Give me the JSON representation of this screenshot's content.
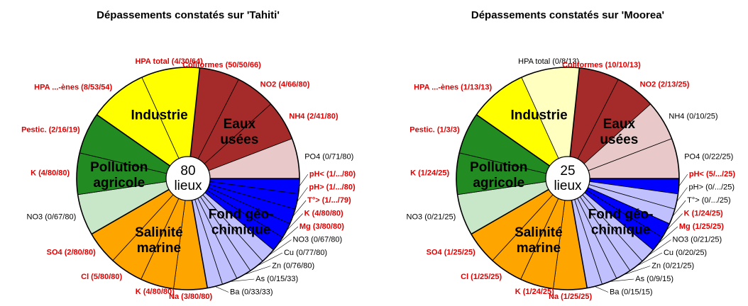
{
  "chart_data": [
    {
      "type": "pie",
      "title": "Dépassements constatés sur 'Tahiti'",
      "center": [
        "80",
        "lieux"
      ],
      "groups": [
        {
          "name": [
            "Fond géo-",
            "chimique"
          ],
          "slices": [
            {
              "label": "pH< (1/.../80)",
              "color": "#0000ff",
              "label_color": "#e00000"
            },
            {
              "label": "pH> (1/.../80)",
              "color": "#0000ff",
              "label_color": "#e00000"
            },
            {
              "label": "T°> (1/.../79)",
              "color": "#0000ff",
              "label_color": "#e00000"
            },
            {
              "label": "K (4/80/80)",
              "color": "#0000ff",
              "label_color": "#e00000"
            },
            {
              "label": "Mg (3/80/80)",
              "color": "#0000ff",
              "label_color": "#e00000"
            },
            {
              "label": "NO3 (0/67/80)",
              "color": "#c0c0ff",
              "label_color": "#000000"
            },
            {
              "label": "Cu (0/77/80)",
              "color": "#c0c0ff",
              "label_color": "#000000"
            },
            {
              "label": "Zn (0/76/80)",
              "color": "#c0c0ff",
              "label_color": "#000000"
            },
            {
              "label": "As (0/15/33)",
              "color": "#c0c0ff",
              "label_color": "#000000"
            },
            {
              "label": "Ba (0/33/33)",
              "color": "#c0c0ff",
              "label_color": "#000000"
            }
          ]
        },
        {
          "name": [
            "Salinité",
            "marine"
          ],
          "slices": [
            {
              "label": "Na (3/80/80)",
              "color": "#ffa500",
              "label_color": "#e00000"
            },
            {
              "label": "K (4/80/80)",
              "color": "#ffa500",
              "label_color": "#e00000"
            },
            {
              "label": "Cl (5/80/80)",
              "color": "#ffa500",
              "label_color": "#e00000"
            },
            {
              "label": "SO4 (2/80/80)",
              "color": "#ffa500",
              "label_color": "#e00000"
            }
          ]
        },
        {
          "name": [
            "Pollution",
            "agricole"
          ],
          "slices": [
            {
              "label": "NO3 (0/67/80)",
              "color": "#c8e6c8",
              "label_color": "#000000"
            },
            {
              "label": "K (4/80/80)",
              "color": "#228b22",
              "label_color": "#e00000"
            },
            {
              "label": "Pestic. (2/16/19)",
              "color": "#228b22",
              "label_color": "#e00000"
            }
          ]
        },
        {
          "name": [
            "Industrie"
          ],
          "slices": [
            {
              "label": "HPA ...-ènes (8/53/54)",
              "color": "#ffff00",
              "label_color": "#e00000"
            },
            {
              "label": "HPA total (4/30/64)",
              "color": "#ffff00",
              "label_color": "#e00000"
            }
          ]
        },
        {
          "name": [
            "Eaux",
            "usées"
          ],
          "slices": [
            {
              "label": "Coliformes (50/50/66)",
              "color": "#a52a2a",
              "label_color": "#e00000"
            },
            {
              "label": "NO2 (4/66/80)",
              "color": "#a52a2a",
              "label_color": "#e00000"
            },
            {
              "label": "NH4 (2/41/80)",
              "color": "#a52a2a",
              "label_color": "#e00000"
            },
            {
              "label": "PO4 (0/71/80)",
              "color": "#e8c8c8",
              "label_color": "#000000"
            }
          ]
        }
      ]
    },
    {
      "type": "pie",
      "title": "Dépassements constatés sur 'Moorea'",
      "center": [
        "25",
        "lieux"
      ],
      "groups": [
        {
          "name": [
            "Fond géo-",
            "chimique"
          ],
          "slices": [
            {
              "label": "pH< (5/.../25)",
              "color": "#0000ff",
              "label_color": "#e00000"
            },
            {
              "label": "pH> (0/.../25)",
              "color": "#c0c0ff",
              "label_color": "#000000"
            },
            {
              "label": "T°> (0/.../25)",
              "color": "#c0c0ff",
              "label_color": "#000000"
            },
            {
              "label": "K (1/24/25)",
              "color": "#0000ff",
              "label_color": "#e00000"
            },
            {
              "label": "Mg (1/25/25)",
              "color": "#0000ff",
              "label_color": "#e00000"
            },
            {
              "label": "NO3 (0/21/25)",
              "color": "#c0c0ff",
              "label_color": "#000000"
            },
            {
              "label": "Cu (0/20/25)",
              "color": "#c0c0ff",
              "label_color": "#000000"
            },
            {
              "label": "Zn (0/21/25)",
              "color": "#c0c0ff",
              "label_color": "#000000"
            },
            {
              "label": "As (0/9/15)",
              "color": "#c0c0ff",
              "label_color": "#000000"
            },
            {
              "label": "Ba (0/15/15)",
              "color": "#c0c0ff",
              "label_color": "#000000"
            }
          ]
        },
        {
          "name": [
            "Salinité",
            "marine"
          ],
          "slices": [
            {
              "label": "Na (1/25/25)",
              "color": "#ffa500",
              "label_color": "#e00000"
            },
            {
              "label": "K (1/24/25)",
              "color": "#ffa500",
              "label_color": "#e00000"
            },
            {
              "label": "Cl (1/25/25)",
              "color": "#ffa500",
              "label_color": "#e00000"
            },
            {
              "label": "SO4 (1/25/25)",
              "color": "#ffa500",
              "label_color": "#e00000"
            }
          ]
        },
        {
          "name": [
            "Pollution",
            "agricole"
          ],
          "slices": [
            {
              "label": "NO3 (0/21/25)",
              "color": "#c8e6c8",
              "label_color": "#000000"
            },
            {
              "label": "K (1/24/25)",
              "color": "#228b22",
              "label_color": "#e00000"
            },
            {
              "label": "Pestic. (1/3/3)",
              "color": "#228b22",
              "label_color": "#e00000"
            }
          ]
        },
        {
          "name": [
            "Industrie"
          ],
          "slices": [
            {
              "label": "HPA ...-ènes (1/13/13)",
              "color": "#ffff00",
              "label_color": "#e00000"
            },
            {
              "label": "HPA total (0/8/13)",
              "color": "#ffffc0",
              "label_color": "#000000"
            }
          ]
        },
        {
          "name": [
            "Eaux",
            "usées"
          ],
          "slices": [
            {
              "label": "Coliformes (10/10/13)",
              "color": "#a52a2a",
              "label_color": "#e00000"
            },
            {
              "label": "NO2 (2/13/25)",
              "color": "#a52a2a",
              "label_color": "#e00000"
            },
            {
              "label": "NH4 (0/10/25)",
              "color": "#e8c8c8",
              "label_color": "#000000"
            },
            {
              "label": "PO4 (0/22/25)",
              "color": "#e8c8c8",
              "label_color": "#000000"
            }
          ]
        }
      ]
    }
  ]
}
